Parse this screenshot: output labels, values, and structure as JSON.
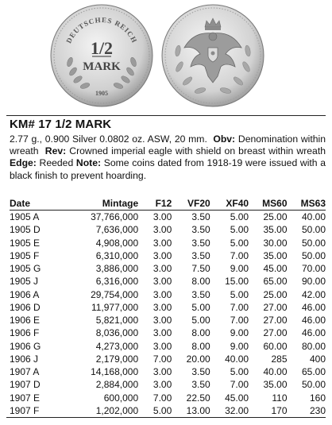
{
  "coin_images": {
    "obverse": {
      "icon": "coin-obverse-half-mark",
      "legend": "DEUTSCHES REICH",
      "denomination_top": "1/2",
      "denomination_bottom": "MARK",
      "date": "1905"
    },
    "reverse": {
      "icon": "coin-reverse-imperial-eagle"
    }
  },
  "title": "KM# 17  1/2 MARK",
  "description": {
    "specs": "2.77 g., 0.900 Silver 0.0802 oz. ASW, 20 mm.",
    "obv_label": "Obv:",
    "obv_text": "Denomination within wreath",
    "rev_label": "Rev:",
    "rev_text": "Crowned imperial eagle with shield on breast within wreath",
    "edge_label": "Edge:",
    "edge_text": "Reeded",
    "note_label": "Note:",
    "note_text": "Some coins dated from 1918-19 were issued with a black finish to prevent hoarding."
  },
  "table": {
    "headers": [
      "Date",
      "Mintage",
      "F12",
      "VF20",
      "XF40",
      "MS60",
      "MS63"
    ],
    "rows": [
      [
        "1905 A",
        "37,766,000",
        "3.00",
        "3.50",
        "5.00",
        "25.00",
        "40.00"
      ],
      [
        "1905 D",
        "7,636,000",
        "3.00",
        "3.50",
        "5.00",
        "35.00",
        "50.00"
      ],
      [
        "1905 E",
        "4,908,000",
        "3.00",
        "3.50",
        "5.00",
        "30.00",
        "50.00"
      ],
      [
        "1905 F",
        "6,310,000",
        "3.00",
        "3.50",
        "7.00",
        "35.00",
        "50.00"
      ],
      [
        "1905 G",
        "3,886,000",
        "3.00",
        "7.50",
        "9.00",
        "45.00",
        "70.00"
      ],
      [
        "1905 J",
        "6,316,000",
        "3.00",
        "8.00",
        "15.00",
        "65.00",
        "90.00"
      ],
      [
        "1906 A",
        "29,754,000",
        "3.00",
        "3.50",
        "5.00",
        "25.00",
        "42.00"
      ],
      [
        "1906 D",
        "11,977,000",
        "3.00",
        "5.00",
        "7.00",
        "27.00",
        "46.00"
      ],
      [
        "1906 E",
        "5,821,000",
        "3.00",
        "5.00",
        "7.00",
        "27.00",
        "46.00"
      ],
      [
        "1906 F",
        "8,036,000",
        "3.00",
        "8.00",
        "9.00",
        "27.00",
        "46.00"
      ],
      [
        "1906 G",
        "4,273,000",
        "3.00",
        "8.00",
        "9.00",
        "60.00",
        "80.00"
      ],
      [
        "1906 J",
        "2,179,000",
        "7.00",
        "20.00",
        "40.00",
        "285",
        "400"
      ],
      [
        "1907 A",
        "14,168,000",
        "3.00",
        "3.50",
        "5.00",
        "40.00",
        "65.00"
      ],
      [
        "1907 D",
        "2,884,000",
        "3.00",
        "3.50",
        "7.00",
        "35.00",
        "50.00"
      ],
      [
        "1907 E",
        "600,000",
        "7.00",
        "22.50",
        "45.00",
        "110",
        "160"
      ],
      [
        "1907 F",
        "1,202,000",
        "5.00",
        "13.00",
        "32.00",
        "170",
        "230"
      ]
    ]
  }
}
